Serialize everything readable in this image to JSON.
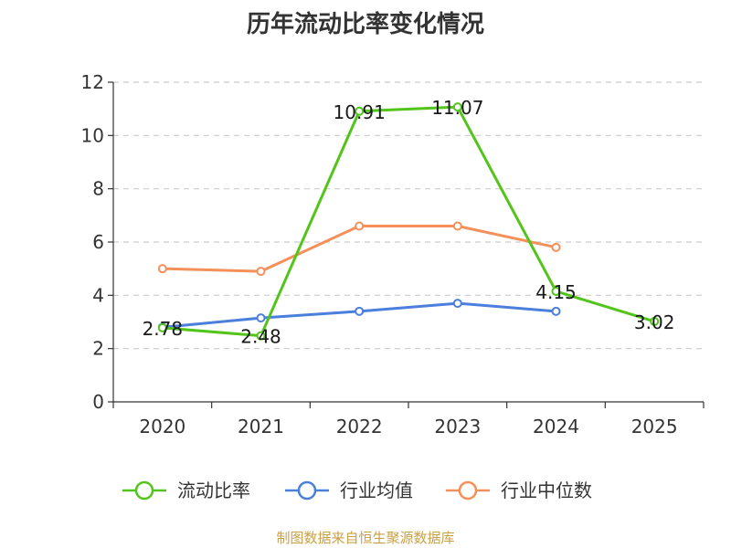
{
  "chart_data": {
    "type": "line",
    "title": "历年流动比率变化情况",
    "categories": [
      "2020",
      "2021",
      "2022",
      "2023",
      "2024",
      "2025"
    ],
    "ylim": [
      0,
      12
    ],
    "yticks": [
      0,
      2,
      4,
      6,
      8,
      10,
      12
    ],
    "grid": true,
    "legend_position": "bottom",
    "series": [
      {
        "name": "流动比率",
        "color": "#52c41a",
        "values": [
          2.78,
          2.48,
          10.91,
          11.07,
          4.15,
          3.02
        ],
        "labels": [
          "2.78",
          "2.48",
          "10.91",
          "11.07",
          "4.15",
          "3.02"
        ]
      },
      {
        "name": "行业均值",
        "color": "#4a7fdb",
        "values": [
          2.8,
          3.15,
          3.4,
          3.7,
          3.4,
          null
        ]
      },
      {
        "name": "行业中位数",
        "color": "#f5905a",
        "values": [
          5.0,
          4.9,
          6.6,
          6.6,
          5.8,
          null
        ]
      }
    ]
  },
  "footer": {
    "source": "制图数据来自恒生聚源数据库"
  }
}
